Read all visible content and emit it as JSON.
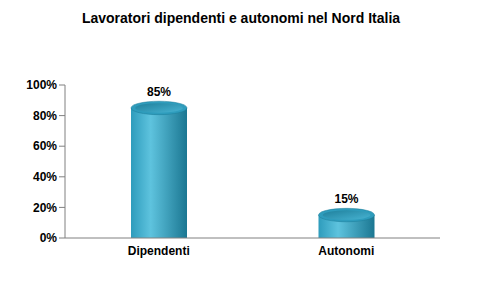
{
  "chart_data": {
    "type": "bar",
    "title": "Lavoratori dipendenti e autonomi nel Nord Italia",
    "categories": [
      "Dipendenti",
      "Autonomi"
    ],
    "values": [
      85,
      15
    ],
    "value_labels": [
      "85%",
      "15%"
    ],
    "color": "#2e9cbc",
    "ylim": [
      0,
      100
    ],
    "yticks": [
      {
        "value": 0,
        "label": "0%"
      },
      {
        "value": 20,
        "label": "20%"
      },
      {
        "value": 40,
        "label": "40%"
      },
      {
        "value": 60,
        "label": "60%"
      },
      {
        "value": 80,
        "label": "80%"
      },
      {
        "value": 100,
        "label": "100%"
      }
    ],
    "grid": false,
    "data_labels": true
  }
}
